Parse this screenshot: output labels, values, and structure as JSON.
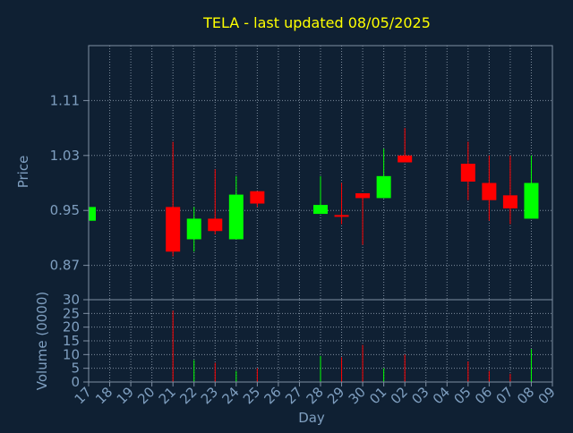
{
  "colors": {
    "background": "#0f2033",
    "axis": "#7f8fa3",
    "grid": "#9aa8b8",
    "title": "#ffff00",
    "label": "#7f9fc0",
    "up": "#00ff00",
    "down": "#ff0000"
  },
  "chart_data": {
    "type": "candlestick",
    "title": "TELA - last updated 08/05/2025",
    "xlabel": "Day",
    "grid": true,
    "price_panel": {
      "ylabel": "Price",
      "ylim": [
        0.82,
        1.19
      ],
      "yticks": [
        0.87,
        0.95,
        1.03,
        1.11
      ],
      "ytick_labels": [
        "0.87",
        "0.95",
        "1.03",
        "1.11"
      ]
    },
    "volume_panel": {
      "ylabel": "Volume (0000)",
      "ylim": [
        0,
        30
      ],
      "yticks": [
        0,
        5,
        10,
        15,
        20,
        25,
        30
      ],
      "ytick_labels": [
        "0",
        "5",
        "10",
        "15",
        "20",
        "25",
        "30"
      ]
    },
    "days": [
      "17",
      "18",
      "19",
      "20",
      "21",
      "22",
      "23",
      "24",
      "25",
      "26",
      "27",
      "28",
      "29",
      "30",
      "01",
      "02",
      "03",
      "04",
      "05",
      "06",
      "07",
      "08",
      "09"
    ],
    "candles": [
      {
        "day": "17",
        "open": 0.935,
        "high": 0.955,
        "low": 0.935,
        "close": 0.955
      },
      {
        "day": "21",
        "open": 0.955,
        "high": 1.05,
        "low": 0.883,
        "close": 0.89
      },
      {
        "day": "22",
        "open": 0.908,
        "high": 0.955,
        "low": 0.89,
        "close": 0.938
      },
      {
        "day": "23",
        "open": 0.938,
        "high": 1.01,
        "low": 0.915,
        "close": 0.92
      },
      {
        "day": "24",
        "open": 0.908,
        "high": 1.0,
        "low": 0.908,
        "close": 0.973
      },
      {
        "day": "25",
        "open": 0.978,
        "high": 0.978,
        "low": 0.955,
        "close": 0.96
      },
      {
        "day": "28",
        "open": 0.945,
        "high": 1.0,
        "low": 0.945,
        "close": 0.958
      },
      {
        "day": "29",
        "open": 0.942,
        "high": 0.99,
        "low": 0.93,
        "close": 0.94
      },
      {
        "day": "30",
        "open": 0.975,
        "high": 0.975,
        "low": 0.9,
        "close": 0.968
      },
      {
        "day": "01",
        "open": 0.968,
        "high": 1.04,
        "low": 0.968,
        "close": 1.0
      },
      {
        "day": "02",
        "open": 1.03,
        "high": 1.07,
        "low": 1.02,
        "close": 1.02
      },
      {
        "day": "05",
        "open": 1.018,
        "high": 1.05,
        "low": 0.965,
        "close": 0.992
      },
      {
        "day": "06",
        "open": 0.99,
        "high": 1.03,
        "low": 0.935,
        "close": 0.965
      },
      {
        "day": "07",
        "open": 0.972,
        "high": 1.03,
        "low": 0.93,
        "close": 0.953
      },
      {
        "day": "08",
        "open": 0.938,
        "high": 1.03,
        "low": 0.938,
        "close": 0.99
      }
    ],
    "volumes": [
      {
        "day": "17",
        "value": 0
      },
      {
        "day": "21",
        "value": 26
      },
      {
        "day": "22",
        "value": 8
      },
      {
        "day": "23",
        "value": 7
      },
      {
        "day": "24",
        "value": 4
      },
      {
        "day": "25",
        "value": 5
      },
      {
        "day": "28",
        "value": 9.5
      },
      {
        "day": "29",
        "value": 9
      },
      {
        "day": "30",
        "value": 13.5
      },
      {
        "day": "01",
        "value": 5
      },
      {
        "day": "02",
        "value": 10
      },
      {
        "day": "05",
        "value": 7.5
      },
      {
        "day": "06",
        "value": 4
      },
      {
        "day": "07",
        "value": 3
      },
      {
        "day": "08",
        "value": 12
      }
    ]
  }
}
